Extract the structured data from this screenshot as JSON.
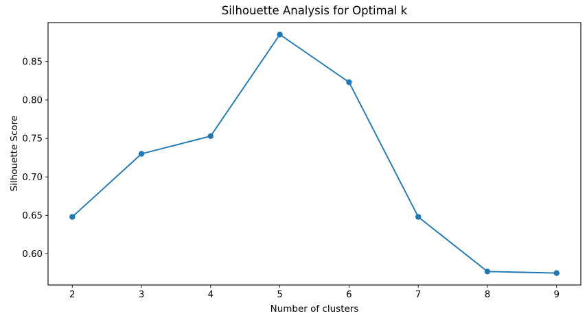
{
  "chart_data": {
    "type": "line",
    "title": "Silhouette Analysis for Optimal k",
    "xlabel": "Number of clusters",
    "ylabel": "Silhouette Score",
    "series": [
      {
        "name": "Silhouette Score",
        "x": [
          2,
          3,
          4,
          5,
          6,
          7,
          8,
          9
        ],
        "values": [
          0.648,
          0.73,
          0.753,
          0.885,
          0.823,
          0.648,
          0.577,
          0.575
        ]
      }
    ],
    "xticks": [
      2,
      3,
      4,
      5,
      6,
      7,
      8,
      9
    ],
    "xtick_labels": [
      "2",
      "3",
      "4",
      "5",
      "6",
      "7",
      "8",
      "9"
    ],
    "yticks": [
      0.6,
      0.65,
      0.7,
      0.75,
      0.8,
      0.85
    ],
    "ytick_labels": [
      "0.60",
      "0.65",
      "0.70",
      "0.75",
      "0.80",
      "0.85"
    ],
    "xlim": [
      1.65,
      9.35
    ],
    "ylim": [
      0.5595,
      0.9005
    ],
    "grid": false,
    "legend": null,
    "line_color": "#1f77b4",
    "marker": "o",
    "spine_color": "#000000",
    "background_color": "#ffffff"
  }
}
